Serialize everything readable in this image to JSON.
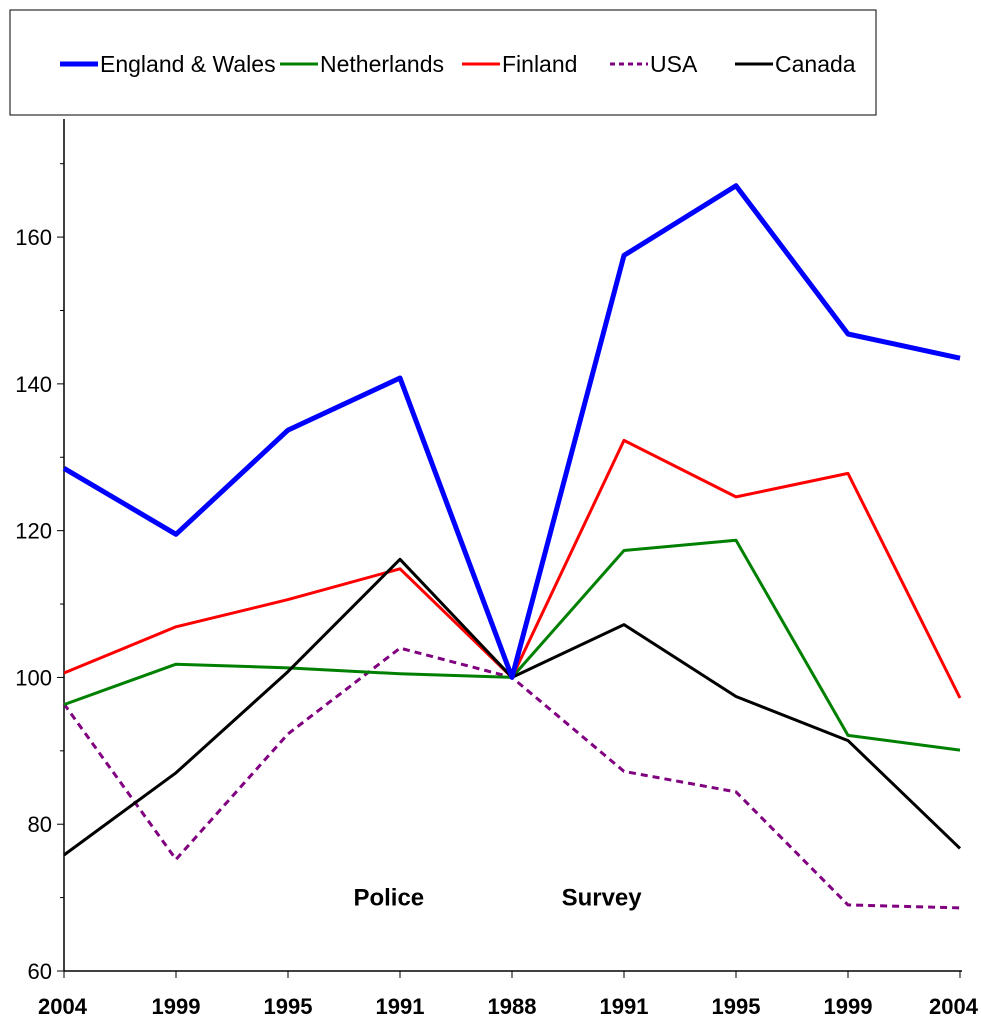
{
  "chart_data": {
    "type": "line",
    "categories": [
      "2004",
      "1999",
      "1995",
      "1991",
      "1988",
      "1991",
      "1995",
      "1999",
      "2004"
    ],
    "ylim": [
      60,
      175
    ],
    "y_ticks": [
      60,
      80,
      100,
      120,
      140,
      160
    ],
    "y_tick_labels": [
      "60",
      "80",
      "100",
      "120",
      "140",
      "160"
    ],
    "grid": false,
    "legend_position": "top",
    "annotations": [
      {
        "text": "Police",
        "x_index": 2.9,
        "y": 70
      },
      {
        "text": "Survey",
        "x_index": 4.8,
        "y": 70
      }
    ],
    "series": [
      {
        "name": "England & Wales",
        "color": "#0000ff",
        "dash": "solid",
        "width": 5,
        "values": [
          128.5,
          119.5,
          133.7,
          140.8,
          100,
          157.5,
          167,
          146.8,
          143.5
        ]
      },
      {
        "name": "Netherlands",
        "color": "#008000",
        "dash": "solid",
        "width": 3,
        "values": [
          96.3,
          101.8,
          101.3,
          100.5,
          100,
          117.3,
          118.7,
          92.1,
          90.1
        ]
      },
      {
        "name": "Finland",
        "color": "#ff0000",
        "dash": "solid",
        "width": 3,
        "values": [
          100.6,
          106.9,
          110.6,
          114.8,
          100,
          132.3,
          124.6,
          127.8,
          97.2
        ]
      },
      {
        "name": "USA",
        "color": "#800080",
        "dash": "dashed",
        "width": 3,
        "values": [
          96.4,
          75.2,
          92.3,
          104,
          100,
          87.2,
          84.4,
          69,
          68.6
        ]
      },
      {
        "name": "Canada",
        "color": "#000000",
        "dash": "solid",
        "width": 3,
        "values": [
          75.8,
          87,
          100.8,
          116.1,
          100,
          107.2,
          97.4,
          91.4,
          76.7
        ]
      }
    ]
  }
}
